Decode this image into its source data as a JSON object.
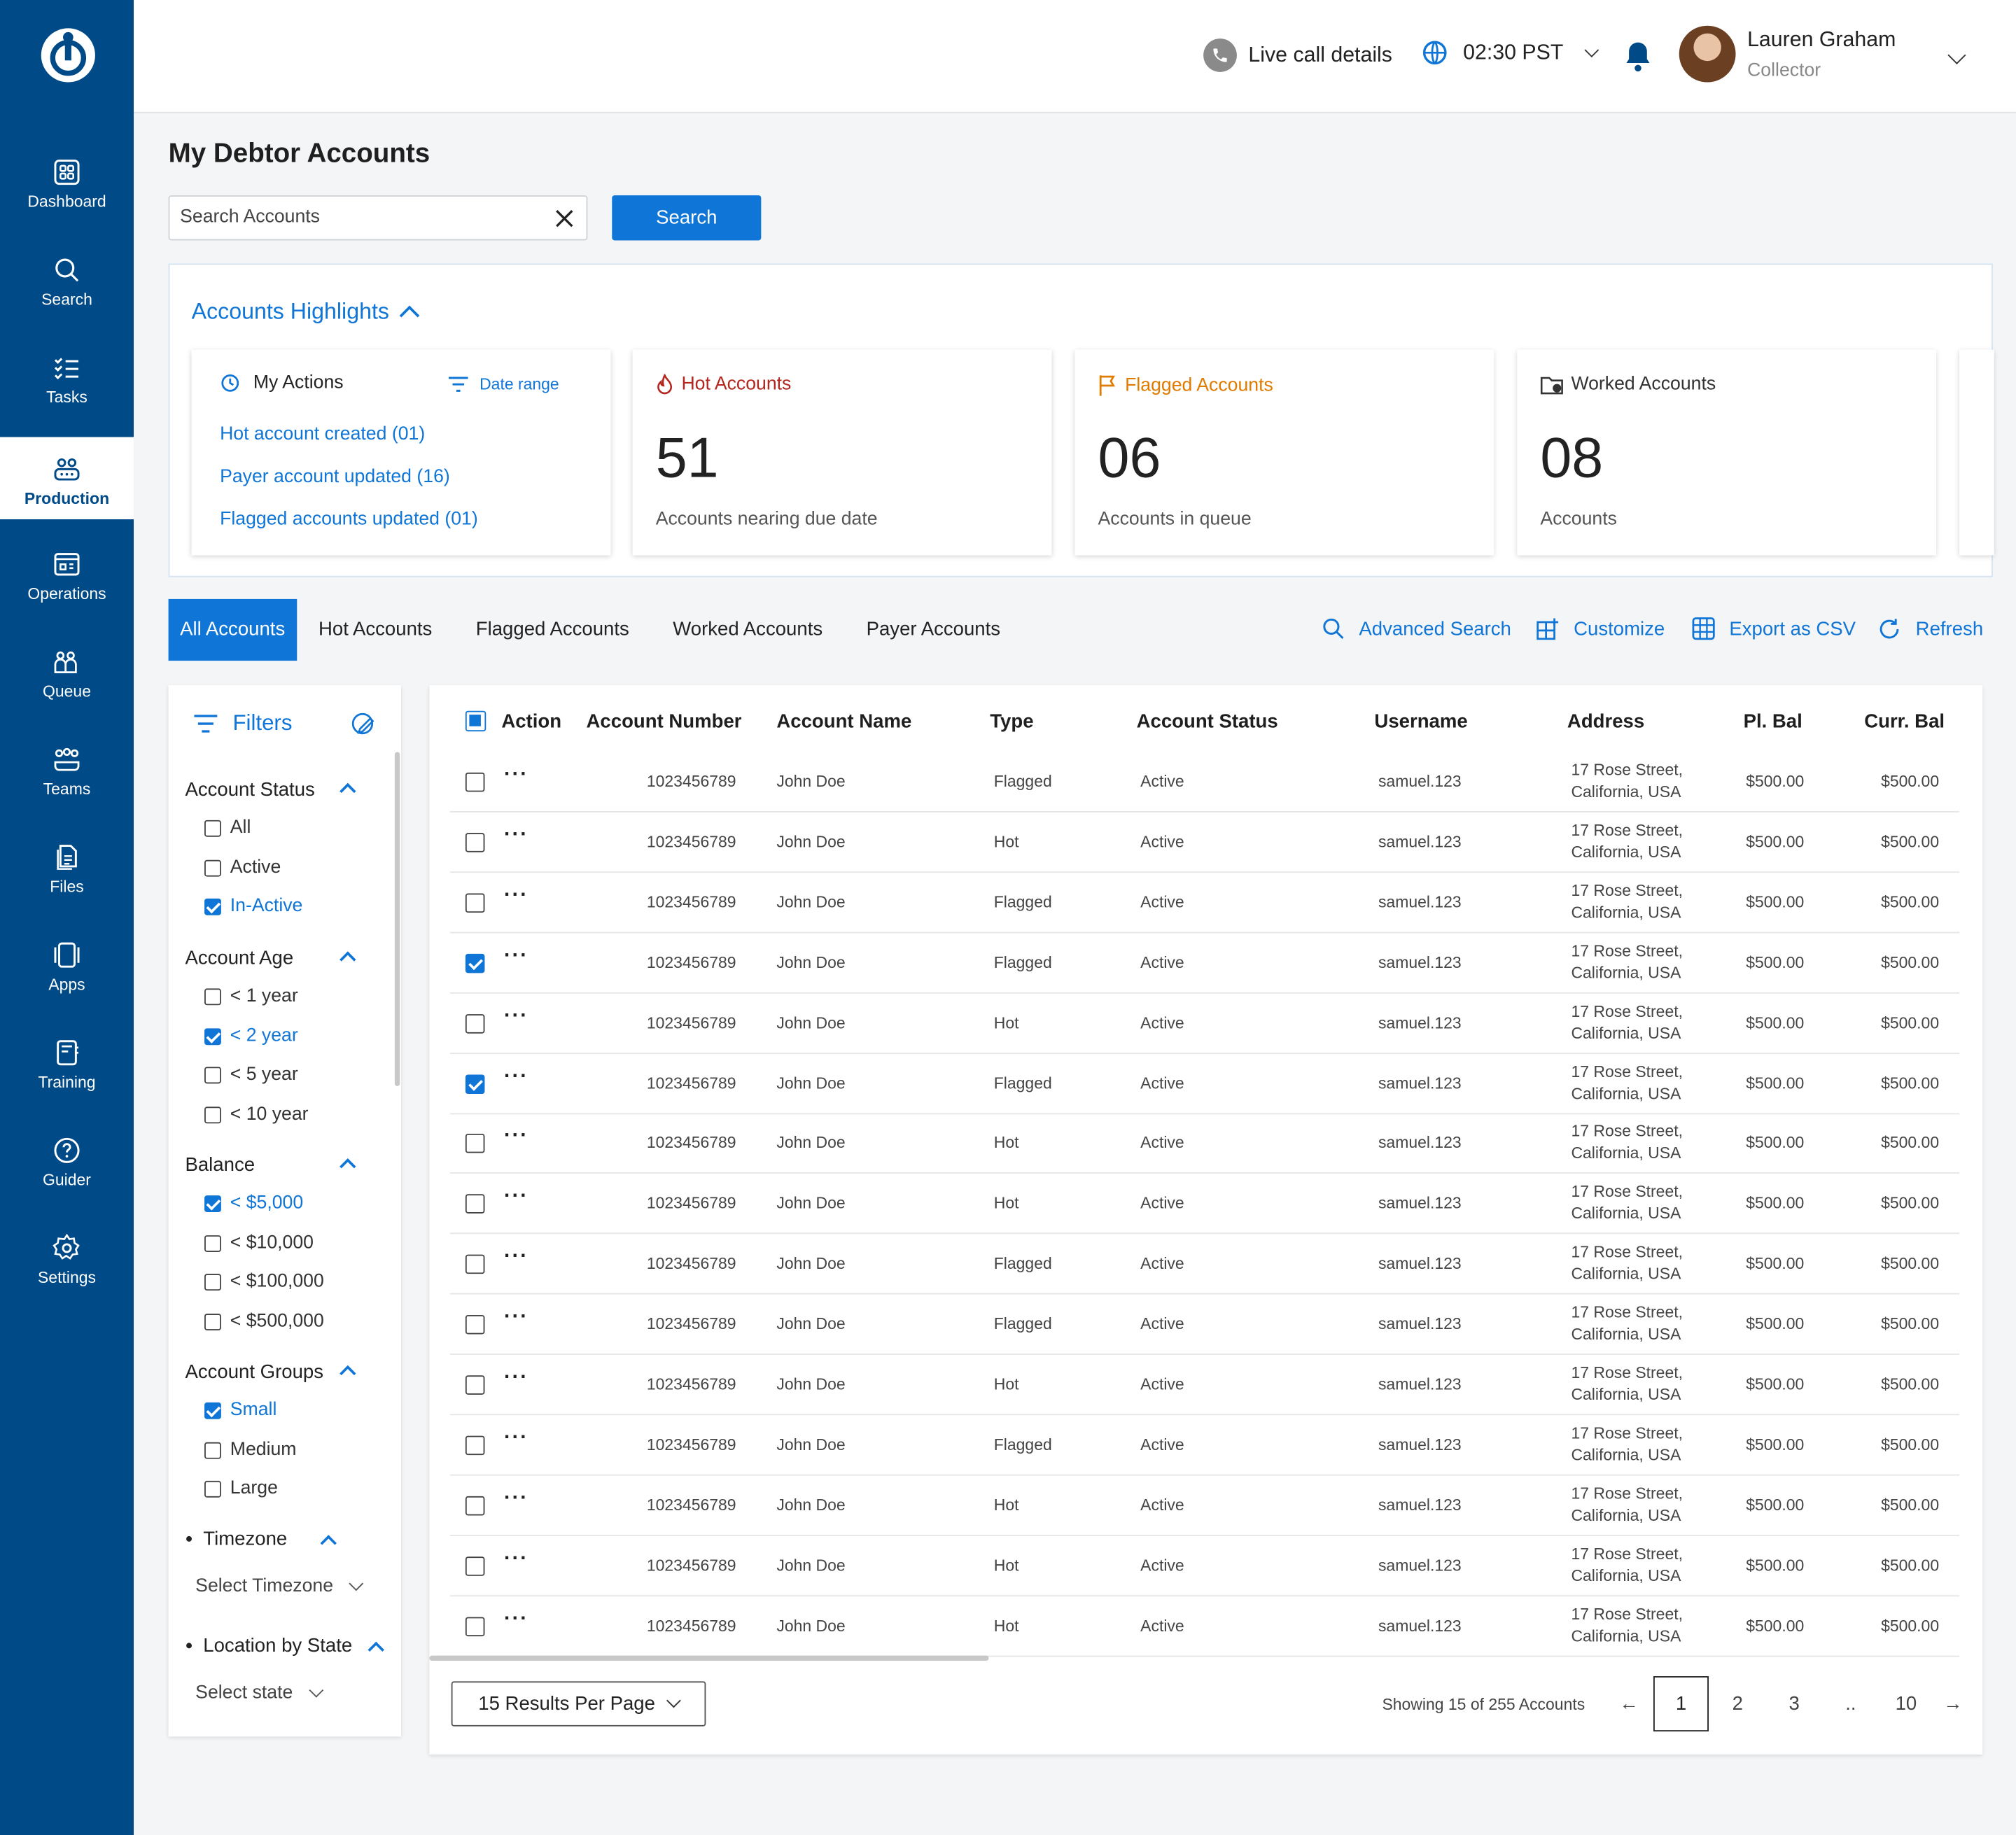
{
  "sidebar": {
    "items": [
      {
        "label": "Dashboard",
        "icon": "dashboard-icon"
      },
      {
        "label": "Search",
        "icon": "search-icon"
      },
      {
        "label": "Tasks",
        "icon": "tasks-icon"
      },
      {
        "label": "Production",
        "icon": "production-icon",
        "active": true
      },
      {
        "label": "Operations",
        "icon": "operations-icon"
      },
      {
        "label": "Queue",
        "icon": "queue-icon"
      },
      {
        "label": "Teams",
        "icon": "teams-icon"
      },
      {
        "label": "Files",
        "icon": "files-icon"
      },
      {
        "label": "Apps",
        "icon": "apps-icon"
      },
      {
        "label": "Training",
        "icon": "training-icon"
      },
      {
        "label": "Guider",
        "icon": "help-icon"
      },
      {
        "label": "Settings",
        "icon": "settings-icon"
      }
    ]
  },
  "header": {
    "live_call": "Live call details",
    "time": "02:30 PST",
    "user_name": "Lauren Graham",
    "user_role": "Collector"
  },
  "page": {
    "title": "My Debtor Accounts",
    "search_placeholder": "Search Accounts",
    "search_button": "Search"
  },
  "highlights": {
    "title": "Accounts Highlights",
    "my_actions": {
      "label": "My Actions",
      "date_range": "Date range",
      "links": [
        "Hot account created (01)",
        "Payer account updated (16)",
        "Flagged accounts updated (01)"
      ]
    },
    "cards": [
      {
        "title": "Hot Accounts",
        "value": "51",
        "sub": "Accounts nearing due date",
        "color": "#b3261e"
      },
      {
        "title": "Flagged Accounts",
        "value": "06",
        "sub": "Accounts in queue",
        "color": "#e07b00"
      },
      {
        "title": "Worked Accounts",
        "value": "08",
        "sub": "Accounts",
        "color": "#333333"
      }
    ]
  },
  "tabs": [
    "All Accounts",
    "Hot Accounts",
    "Flagged Accounts",
    "Worked Accounts",
    "Payer Accounts"
  ],
  "toolbar": {
    "advanced_search": "Advanced Search",
    "customize": "Customize",
    "export": "Export as CSV",
    "refresh": "Refresh"
  },
  "filters": {
    "title": "Filters",
    "groups": [
      {
        "label": "Account Status",
        "options": [
          {
            "label": "All",
            "checked": false
          },
          {
            "label": "Active",
            "checked": false
          },
          {
            "label": "In-Active",
            "checked": true
          }
        ]
      },
      {
        "label": "Account Age",
        "options": [
          {
            "label": "< 1 year",
            "checked": false
          },
          {
            "label": "< 2 year",
            "checked": true
          },
          {
            "label": "< 5 year",
            "checked": false
          },
          {
            "label": "< 10 year",
            "checked": false
          }
        ]
      },
      {
        "label": "Balance",
        "options": [
          {
            "label": "< $5,000",
            "checked": true
          },
          {
            "label": "< $10,000",
            "checked": false
          },
          {
            "label": "< $100,000",
            "checked": false
          },
          {
            "label": "< $500,000",
            "checked": false
          }
        ]
      },
      {
        "label": "Account Groups",
        "options": [
          {
            "label": "Small",
            "checked": true
          },
          {
            "label": "Medium",
            "checked": false
          },
          {
            "label": "Large",
            "checked": false
          }
        ]
      }
    ],
    "timezone_label": "Timezone",
    "timezone_select": "Select Timezone",
    "location_label": "Location by State",
    "location_select": "Select state"
  },
  "table": {
    "columns": [
      "Action",
      "Account Number",
      "Account Name",
      "Type",
      "Account Status",
      "Username",
      "Address",
      "Pl. Bal",
      "Curr. Bal"
    ],
    "rows": [
      {
        "checked": false,
        "number": "1023456789",
        "name": "John Doe",
        "type": "Flagged",
        "status": "Active",
        "username": "samuel.123",
        "addr1": "17 Rose Street,",
        "addr2": "California, USA",
        "pl": "$500.00",
        "curr": "$500.00"
      },
      {
        "checked": false,
        "number": "1023456789",
        "name": "John Doe",
        "type": "Hot",
        "status": "Active",
        "username": "samuel.123",
        "addr1": "17 Rose Street,",
        "addr2": "California, USA",
        "pl": "$500.00",
        "curr": "$500.00"
      },
      {
        "checked": false,
        "number": "1023456789",
        "name": "John Doe",
        "type": "Flagged",
        "status": "Active",
        "username": "samuel.123",
        "addr1": "17 Rose Street,",
        "addr2": "California, USA",
        "pl": "$500.00",
        "curr": "$500.00"
      },
      {
        "checked": true,
        "number": "1023456789",
        "name": "John Doe",
        "type": "Flagged",
        "status": "Active",
        "username": "samuel.123",
        "addr1": "17 Rose Street,",
        "addr2": "California, USA",
        "pl": "$500.00",
        "curr": "$500.00"
      },
      {
        "checked": false,
        "number": "1023456789",
        "name": "John Doe",
        "type": "Hot",
        "status": "Active",
        "username": "samuel.123",
        "addr1": "17 Rose Street,",
        "addr2": "California, USA",
        "pl": "$500.00",
        "curr": "$500.00"
      },
      {
        "checked": true,
        "number": "1023456789",
        "name": "John Doe",
        "type": "Flagged",
        "status": "Active",
        "username": "samuel.123",
        "addr1": "17 Rose Street,",
        "addr2": "California, USA",
        "pl": "$500.00",
        "curr": "$500.00"
      },
      {
        "checked": false,
        "number": "1023456789",
        "name": "John Doe",
        "type": "Hot",
        "status": "Active",
        "username": "samuel.123",
        "addr1": "17 Rose Street,",
        "addr2": "California, USA",
        "pl": "$500.00",
        "curr": "$500.00"
      },
      {
        "checked": false,
        "number": "1023456789",
        "name": "John Doe",
        "type": "Hot",
        "status": "Active",
        "username": "samuel.123",
        "addr1": "17 Rose Street,",
        "addr2": "California, USA",
        "pl": "$500.00",
        "curr": "$500.00"
      },
      {
        "checked": false,
        "number": "1023456789",
        "name": "John Doe",
        "type": "Flagged",
        "status": "Active",
        "username": "samuel.123",
        "addr1": "17 Rose Street,",
        "addr2": "California, USA",
        "pl": "$500.00",
        "curr": "$500.00"
      },
      {
        "checked": false,
        "number": "1023456789",
        "name": "John Doe",
        "type": "Flagged",
        "status": "Active",
        "username": "samuel.123",
        "addr1": "17 Rose Street,",
        "addr2": "California, USA",
        "pl": "$500.00",
        "curr": "$500.00"
      },
      {
        "checked": false,
        "number": "1023456789",
        "name": "John Doe",
        "type": "Hot",
        "status": "Active",
        "username": "samuel.123",
        "addr1": "17 Rose Street,",
        "addr2": "California, USA",
        "pl": "$500.00",
        "curr": "$500.00"
      },
      {
        "checked": false,
        "number": "1023456789",
        "name": "John Doe",
        "type": "Flagged",
        "status": "Active",
        "username": "samuel.123",
        "addr1": "17 Rose Street,",
        "addr2": "California, USA",
        "pl": "$500.00",
        "curr": "$500.00"
      },
      {
        "checked": false,
        "number": "1023456789",
        "name": "John Doe",
        "type": "Hot",
        "status": "Active",
        "username": "samuel.123",
        "addr1": "17 Rose Street,",
        "addr2": "California, USA",
        "pl": "$500.00",
        "curr": "$500.00"
      },
      {
        "checked": false,
        "number": "1023456789",
        "name": "John Doe",
        "type": "Hot",
        "status": "Active",
        "username": "samuel.123",
        "addr1": "17 Rose Street,",
        "addr2": "California, USA",
        "pl": "$500.00",
        "curr": "$500.00"
      },
      {
        "checked": false,
        "number": "1023456789",
        "name": "John Doe",
        "type": "Hot",
        "status": "Active",
        "username": "samuel.123",
        "addr1": "17 Rose Street,",
        "addr2": "California, USA",
        "pl": "$500.00",
        "curr": "$500.00"
      }
    ]
  },
  "pagination": {
    "per_page": "15 Results Per Page",
    "showing": "Showing 15 of 255 Accounts",
    "pages": [
      "1",
      "2",
      "3",
      "..",
      "10"
    ],
    "current": "1"
  },
  "colors": {
    "primary": "#0f75d6",
    "sidebar": "#004a87"
  }
}
